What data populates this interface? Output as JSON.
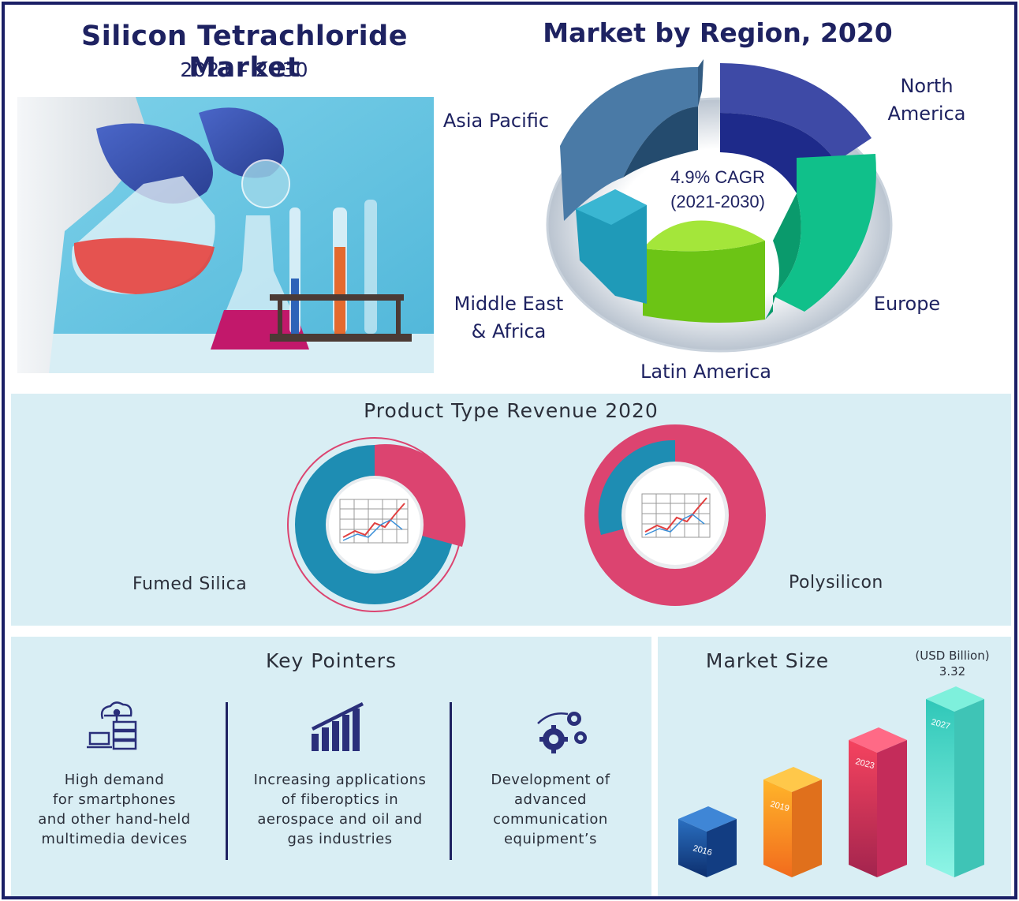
{
  "header": {
    "title": "Silicon Tetrachloride Market",
    "years": "2021 - 2030"
  },
  "region_chart": {
    "title": "Market by Region, 2020",
    "center_line1": "4.9% CAGR",
    "center_line2": "(2021-2030)",
    "labels": {
      "north_america_1": "North",
      "north_america_2": "America",
      "asia_pacific": "Asia Pacific",
      "europe": "Europe",
      "middle_east_1": "Middle East",
      "middle_east_2": "& Africa",
      "latin_america": "Latin America"
    },
    "colors": {
      "asia_pacific": "#4a7aa6",
      "north_america": "#27339a",
      "europe": "#10c08a",
      "latin_america": "#7ed321",
      "middle_east": "#1f9ab8"
    }
  },
  "product_type": {
    "title": "Product Type Revenue 2020",
    "fumed_silica": "Fumed Silica",
    "polysilicon": "Polysilicon",
    "colors": {
      "pink": "#dc4470",
      "blue": "#1e8db3"
    }
  },
  "key_pointers": {
    "title": "Key Pointers",
    "items": [
      {
        "icon": "cloud-server-icon",
        "lines": [
          "High demand",
          "for smartphones",
          "and other hand-held",
          "multimedia devices"
        ]
      },
      {
        "icon": "bar-growth-icon",
        "lines": [
          "Increasing applications",
          "of fiberoptics in",
          "aerospace and oil and",
          "gas industries"
        ]
      },
      {
        "icon": "gears-icon",
        "lines": [
          "Development of",
          "advanced",
          "communication",
          "equipment’s"
        ]
      }
    ]
  },
  "market_size": {
    "title": "Market Size",
    "unit": "(USD Billion)",
    "value_label": "3.32",
    "bars": [
      {
        "year": "2016",
        "color": "#1d5ea8"
      },
      {
        "year": "2019",
        "color": "#f79a1f"
      },
      {
        "year": "2023",
        "color": "#e8375f"
      },
      {
        "year": "2027",
        "color": "#3fd6c0"
      }
    ]
  }
}
